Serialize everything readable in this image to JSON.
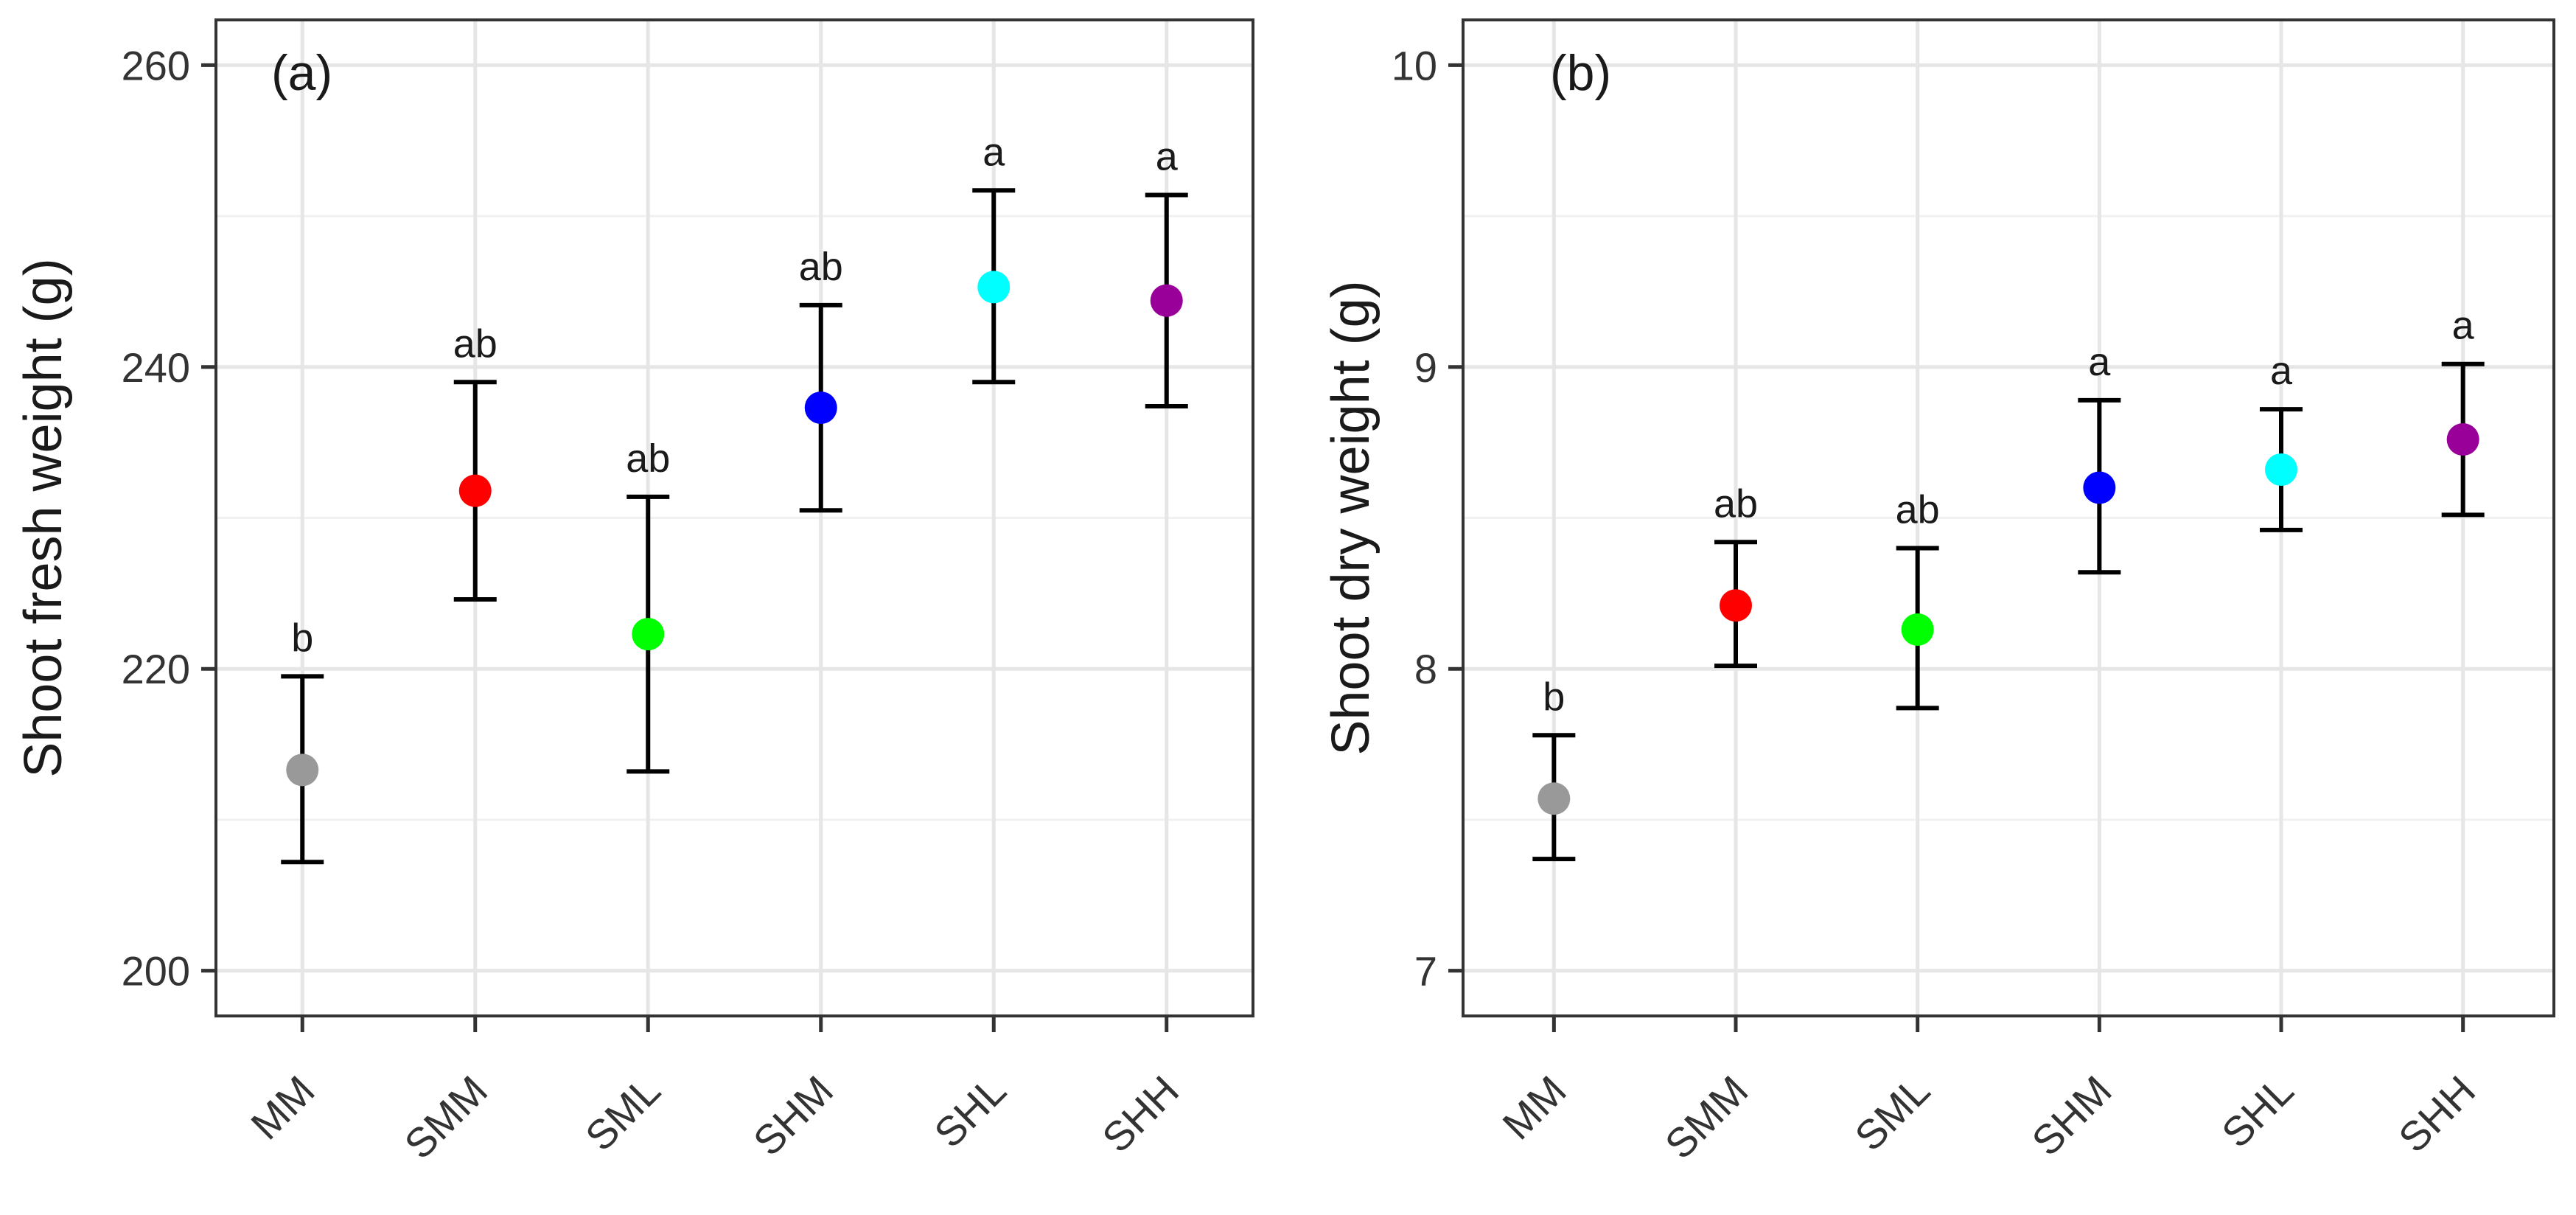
{
  "chart_data": [
    {
      "type": "scatter",
      "panel_label": "(a)",
      "title": "",
      "xlabel": "",
      "ylabel": "Shoot fresh weight (g)",
      "categories": [
        "MM",
        "SMM",
        "SML",
        "SHM",
        "SHL",
        "SHH"
      ],
      "means": [
        213.3,
        231.8,
        222.3,
        237.3,
        245.3,
        244.4
      ],
      "lower": [
        207.2,
        224.6,
        213.2,
        230.5,
        239.0,
        237.4
      ],
      "upper": [
        219.5,
        239.0,
        231.4,
        244.1,
        251.7,
        251.4
      ],
      "significance": [
        "b",
        "ab",
        "ab",
        "ab",
        "a",
        "a"
      ],
      "colors": [
        "#999999",
        "#ff0000",
        "#00ff00",
        "#0000ff",
        "#00ffff",
        "#990099"
      ],
      "ylim": [
        197,
        263
      ],
      "yticks": [
        200,
        220,
        240,
        260
      ],
      "grid": true
    },
    {
      "type": "scatter",
      "panel_label": "(b)",
      "title": "",
      "xlabel": "",
      "ylabel": "Shoot dry weight (g)",
      "categories": [
        "MM",
        "SMM",
        "SML",
        "SHM",
        "SHL",
        "SHH"
      ],
      "means": [
        7.57,
        8.21,
        8.13,
        8.6,
        8.66,
        8.76
      ],
      "lower": [
        7.37,
        8.01,
        7.87,
        8.32,
        8.46,
        8.51
      ],
      "upper": [
        7.78,
        8.42,
        8.4,
        8.89,
        8.86,
        9.01
      ],
      "significance": [
        "b",
        "ab",
        "ab",
        "a",
        "a",
        "a"
      ],
      "colors": [
        "#999999",
        "#ff0000",
        "#00ff00",
        "#0000ff",
        "#00ffff",
        "#990099"
      ],
      "ylim": [
        6.85,
        10.15
      ],
      "yticks": [
        7,
        8,
        9,
        10
      ],
      "grid": true
    }
  ]
}
